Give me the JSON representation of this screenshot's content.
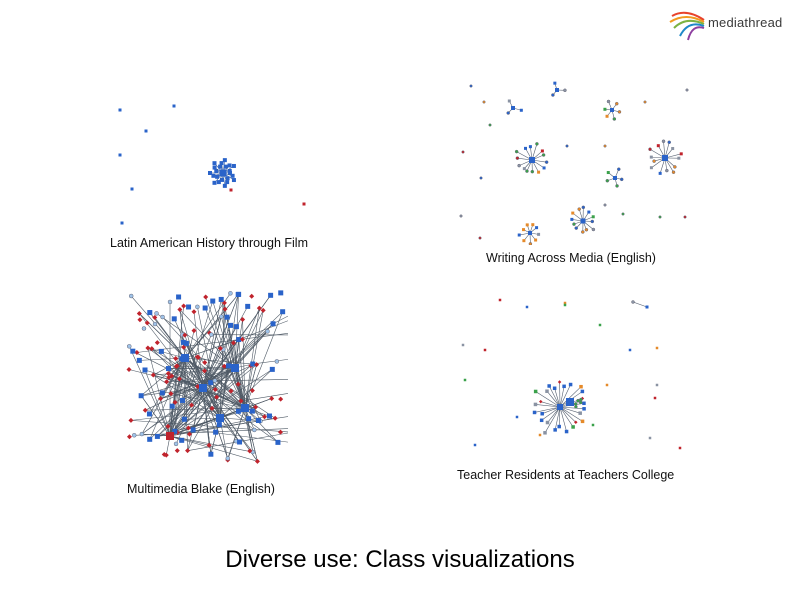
{
  "logo": {
    "text": "mediathread"
  },
  "title": "Diverse use:  Class visualizations",
  "panels": [
    {
      "caption": "Latin American History through Film"
    },
    {
      "caption": "Writing Across Media (English)"
    },
    {
      "caption": "Multimedia Blake (English)"
    },
    {
      "caption": "Teacher Residents at Teachers College"
    }
  ],
  "colors": {
    "blue": "#2a63c9",
    "red": "#c0232c",
    "orange": "#e58a2a",
    "green": "#3aa14a",
    "gray": "#8a93a3",
    "lightblue": "#9fc3e8"
  }
}
